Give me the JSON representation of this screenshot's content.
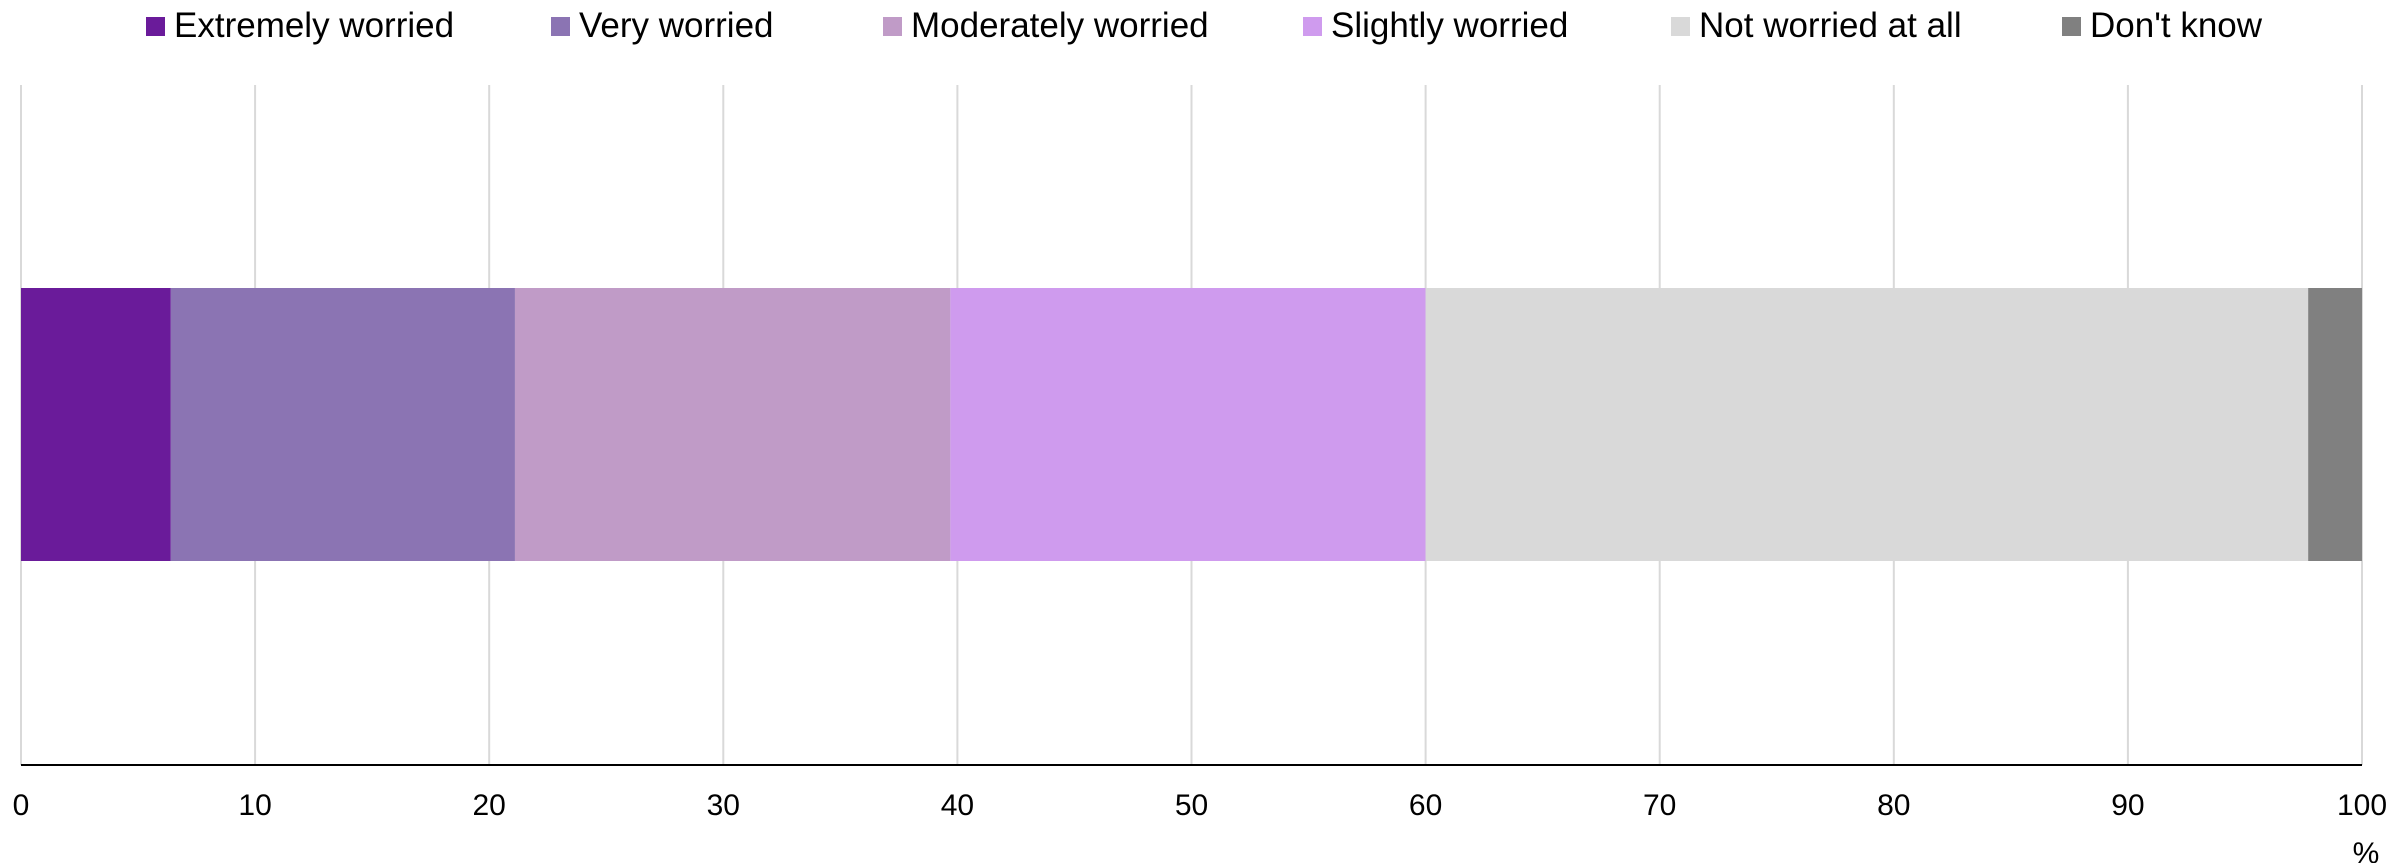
{
  "chart_data": {
    "type": "bar",
    "orientation": "horizontal",
    "stacked": true,
    "title": "",
    "xlabel": "",
    "ylabel": "",
    "unit": "%",
    "xlim": [
      0,
      100
    ],
    "xticks": [
      "0",
      "10",
      "20",
      "30",
      "40",
      "50",
      "60",
      "70",
      "80",
      "90",
      "100"
    ],
    "grid": true,
    "legend_position": "top",
    "series": [
      {
        "name": "Extremely worried",
        "value": 6.4,
        "color": "#6a1b9a"
      },
      {
        "name": "Very worried",
        "value": 14.7,
        "color": "#8b74b3"
      },
      {
        "name": "Moderately worried",
        "value": 18.6,
        "color": "#c09bc7"
      },
      {
        "name": "Slightly worried",
        "value": 20.3,
        "color": "#cf9bee"
      },
      {
        "name": "Not worried at all",
        "value": 37.7,
        "color": "#d9d9d9"
      },
      {
        "name": "Don't know",
        "value": 2.3,
        "color": "#808080"
      }
    ]
  }
}
